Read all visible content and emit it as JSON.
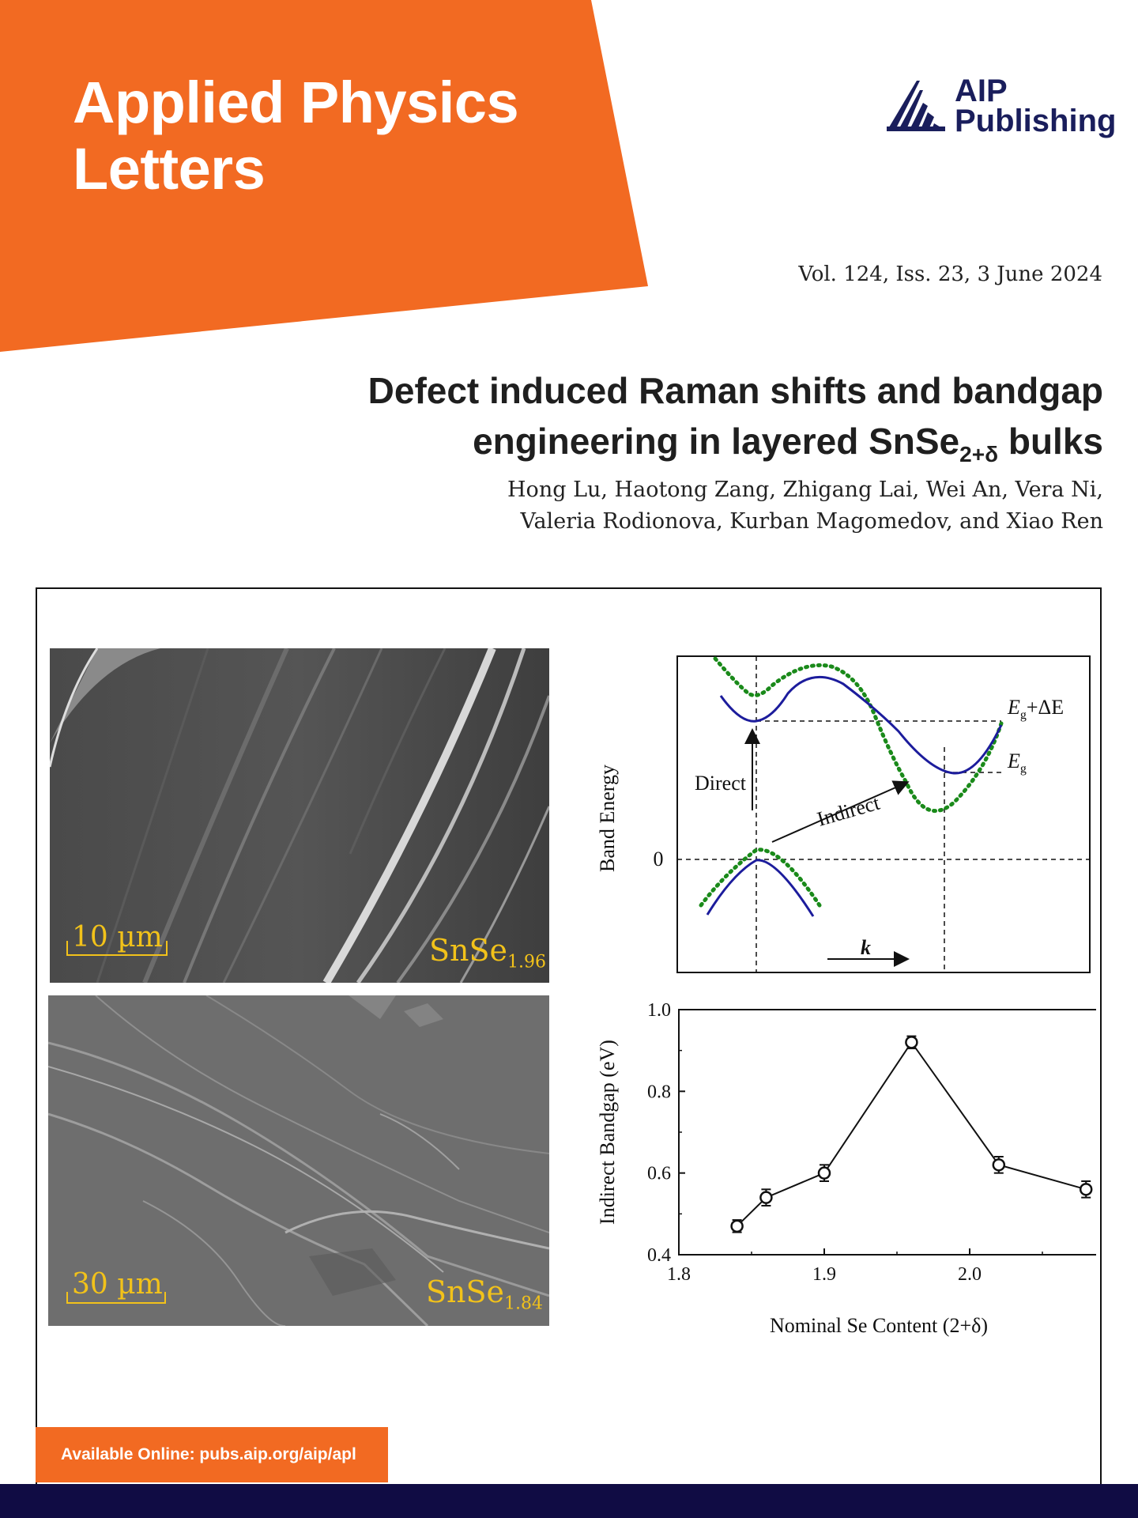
{
  "journal": {
    "title_line1": "Applied Physics",
    "title_line2": "Letters",
    "publisher_line1": "AIP",
    "publisher_line2": "Publishing",
    "issue": "Vol. 124, Iss. 23, 3 June 2024",
    "online": "Available Online: pubs.aip.org/aip/apl"
  },
  "article": {
    "title_line1": "Defect induced Raman shifts and bandgap",
    "title_line2_pre": "engineering in layered SnSe",
    "title_sub": "2+δ",
    "title_line2_post": " bulks",
    "authors_line1": "Hong Lu, Haotong Zang, Zhigang Lai, Wei An, Vera Ni,",
    "authors_line2": "Valeria Rodionova, Kurban Magomedov, and Xiao Ren"
  },
  "sem_images": [
    {
      "scale": "10 µm",
      "label": "SnSe",
      "sub": "1.96"
    },
    {
      "scale": "30 µm",
      "label": "SnSe",
      "sub": "1.84"
    }
  ],
  "band_diagram": {
    "ylabel": "Band Energy",
    "zero": "0",
    "direct": "Direct",
    "indirect": "Indirect",
    "k": "k",
    "eg_delta_E": "E",
    "eg_delta_sub": "g",
    "eg_delta_post": "+ΔE",
    "eg_E": "E",
    "eg_sub": "g"
  },
  "colors": {
    "brand_orange": "#f26a22",
    "navy": "#100c44",
    "band_blue": "#1c1c9c",
    "band_green": "#1a8a1a",
    "sem_label": "#f2c21a"
  },
  "chart_data": {
    "type": "line",
    "xlabel": "Nominal Se Content (2+δ)",
    "ylabel": "Indirect Bandgap (eV)",
    "xlim": [
      1.8,
      2.1
    ],
    "ylim": [
      0.4,
      1.0
    ],
    "xticks": [
      "1.8",
      "1.9",
      "2.0",
      "2.1"
    ],
    "yticks": [
      "0.4",
      "0.6",
      "0.8",
      "1.0"
    ],
    "x": [
      1.84,
      1.86,
      1.9,
      1.96,
      2.02,
      2.08
    ],
    "y": [
      0.47,
      0.54,
      0.6,
      0.92,
      0.62,
      0.56
    ],
    "error": [
      0.015,
      0.02,
      0.02,
      0.015,
      0.02,
      0.02
    ],
    "marker": "open-circle",
    "grid": false
  }
}
